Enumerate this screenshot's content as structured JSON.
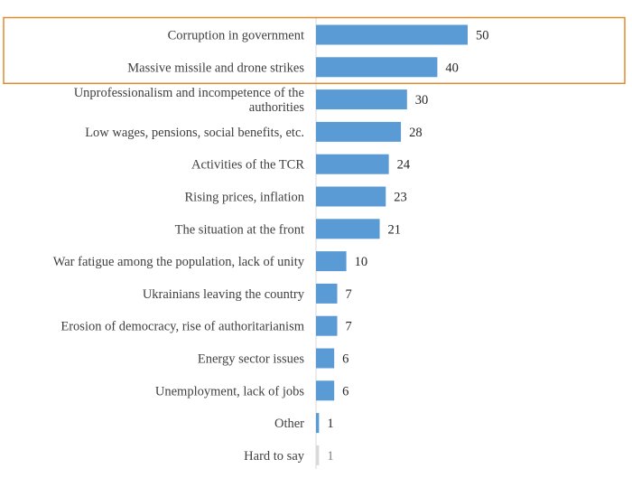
{
  "chart_data": {
    "type": "bar",
    "orientation": "horizontal",
    "categories": [
      "Corruption in government",
      "Massive missile and drone strikes",
      "Unprofessionalism and incompetence of the authorities",
      "Low wages, pensions, social benefits, etc.",
      "Activities of the TCR",
      "Rising prices, inflation",
      "The situation at the front",
      "War fatigue among the population, lack of unity",
      "Ukrainians leaving the country",
      "Erosion of democracy, rise of authoritarianism",
      "Energy sector issues",
      "Unemployment, lack of jobs",
      "Other",
      "Hard to say"
    ],
    "values": [
      50,
      40,
      30,
      28,
      24,
      23,
      21,
      10,
      7,
      7,
      6,
      6,
      1,
      1
    ],
    "data_labels": [
      "50",
      "40",
      "30",
      "28",
      "24",
      "23",
      "21",
      "10",
      "7",
      "7",
      "6",
      "6",
      "1",
      "1"
    ],
    "title": "",
    "xlabel": "",
    "ylabel": "",
    "xlim": [
      0,
      50
    ],
    "grid": false,
    "legend": "none",
    "colors": {
      "bar": "#5b9bd5",
      "bar_muted": "#d9d9d9",
      "highlight_box": "#e08a2e",
      "axis": "#d9d9d9"
    },
    "highlighted_categories": [
      0,
      1
    ],
    "muted_categories": [
      13
    ]
  }
}
